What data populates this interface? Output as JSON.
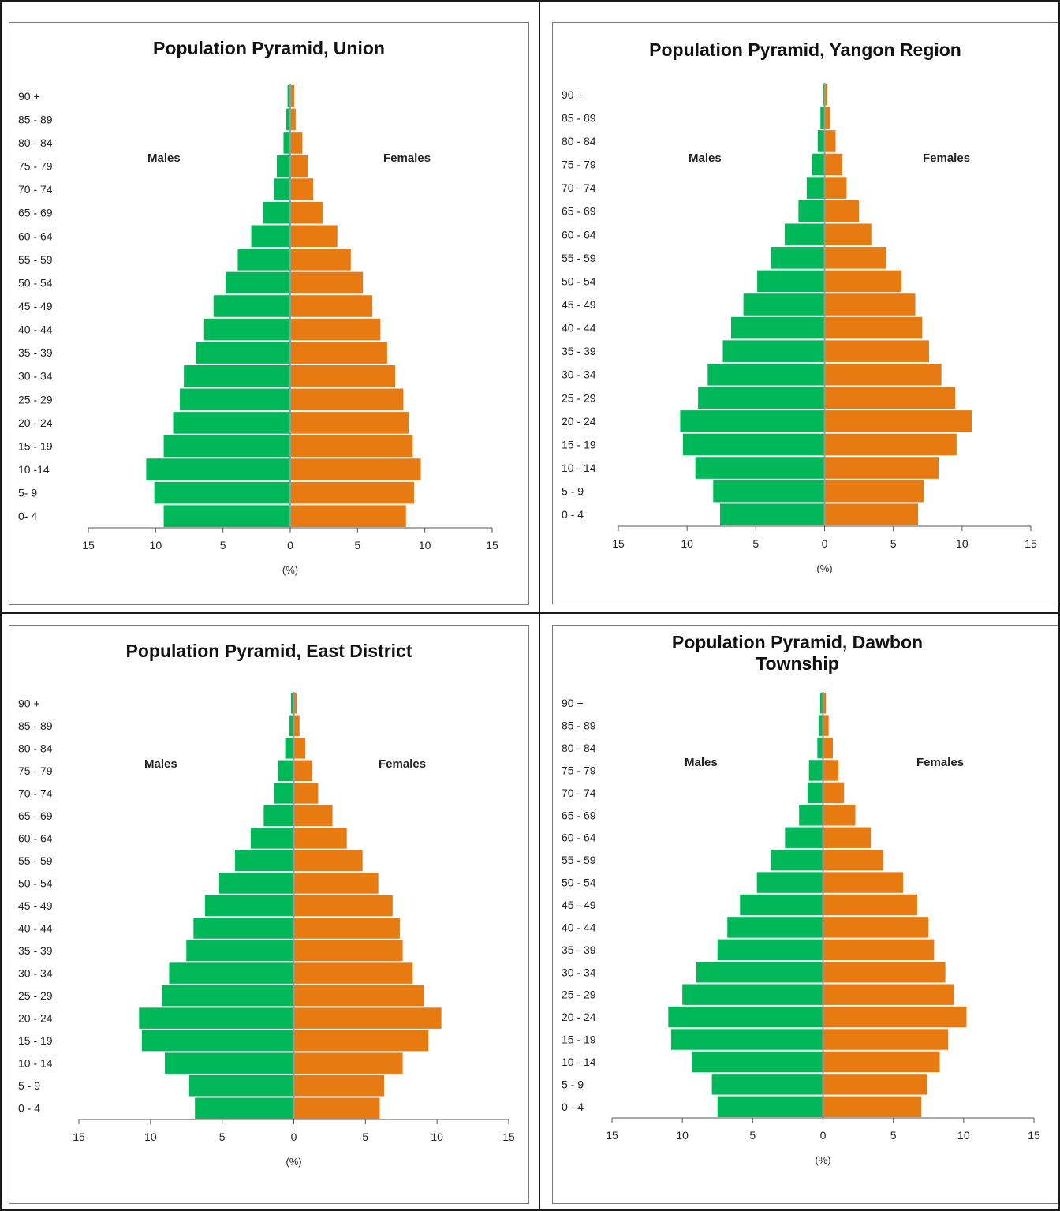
{
  "colors": {
    "males": "#00b857",
    "females": "#e87a12",
    "axis": "#555555",
    "panel_border": "#7a7a7a"
  },
  "chart_data": [
    {
      "type": "bar",
      "orientation": "horizontal-pyramid",
      "title": "Population Pyramid, Union",
      "xlabel": "(%)",
      "xlim": [
        -15,
        15
      ],
      "xticks": [
        "15",
        "10",
        "5",
        "0",
        "5",
        "10",
        "15"
      ],
      "categories": [
        "0- 4",
        "5- 9",
        "10 -14",
        "15 - 19",
        "20 - 24",
        "25 - 29",
        "30 - 34",
        "35 - 39",
        "40 - 44",
        "45 - 49",
        "50 - 54",
        "55 - 59",
        "60 - 64",
        "65 - 69",
        "70 - 74",
        "75 - 79",
        "80 - 84",
        "85 - 89",
        "90 +"
      ],
      "series": [
        {
          "name": "Males",
          "values": [
            9.4,
            10.1,
            10.7,
            9.4,
            8.7,
            8.2,
            7.9,
            7.0,
            6.4,
            5.7,
            4.8,
            3.9,
            2.9,
            2.0,
            1.2,
            1.0,
            0.5,
            0.3,
            0.2
          ]
        },
        {
          "name": "Females",
          "values": [
            8.6,
            9.2,
            9.7,
            9.1,
            8.8,
            8.4,
            7.8,
            7.2,
            6.7,
            6.1,
            5.4,
            4.5,
            3.5,
            2.4,
            1.7,
            1.3,
            0.9,
            0.4,
            0.3
          ]
        }
      ],
      "legend": "inside, Males left / Females right"
    },
    {
      "type": "bar",
      "orientation": "horizontal-pyramid",
      "title": "Population Pyramid, Yangon Region",
      "xlabel": "(%)",
      "xlim": [
        -15,
        15
      ],
      "xticks": [
        "15",
        "10",
        "5",
        "0",
        "5",
        "10",
        "15"
      ],
      "categories": [
        "0 - 4",
        "5 - 9",
        "10 - 14",
        "15 - 19",
        "20 - 24",
        "25 - 29",
        "30 - 34",
        "35 - 39",
        "40 - 44",
        "45 - 49",
        "50 - 54",
        "55 - 59",
        "60 - 64",
        "65 - 69",
        "70 - 74",
        "75 - 79",
        "80 - 84",
        "85 - 89",
        "90 +"
      ],
      "series": [
        {
          "name": "Males",
          "values": [
            7.6,
            8.1,
            9.4,
            10.3,
            10.5,
            9.2,
            8.5,
            7.4,
            6.8,
            5.9,
            4.9,
            3.9,
            2.9,
            1.9,
            1.3,
            0.9,
            0.5,
            0.3,
            0.1
          ]
        },
        {
          "name": "Females",
          "values": [
            6.8,
            7.2,
            8.3,
            9.6,
            10.7,
            9.5,
            8.5,
            7.6,
            7.1,
            6.6,
            5.6,
            4.5,
            3.4,
            2.5,
            1.6,
            1.3,
            0.8,
            0.4,
            0.2
          ]
        }
      ],
      "legend": "inside, Males left / Females right"
    },
    {
      "type": "bar",
      "orientation": "horizontal-pyramid",
      "title": "Population Pyramid, East District",
      "xlabel": "(%)",
      "xlim": [
        -15,
        15
      ],
      "xticks": [
        "15",
        "10",
        "5",
        "0",
        "5",
        "10",
        "15"
      ],
      "categories": [
        "0 - 4",
        "5 - 9",
        "10 - 14",
        "15 - 19",
        "20 - 24",
        "25 - 29",
        "30 - 34",
        "35 - 39",
        "40 - 44",
        "45 - 49",
        "50 - 54",
        "55 - 59",
        "60 - 64",
        "65 - 69",
        "70 - 74",
        "75 - 79",
        "80 - 84",
        "85 - 89",
        "90 +"
      ],
      "series": [
        {
          "name": "Males",
          "values": [
            6.9,
            7.3,
            9.0,
            10.6,
            10.8,
            9.2,
            8.7,
            7.5,
            7.0,
            6.2,
            5.2,
            4.1,
            3.0,
            2.1,
            1.4,
            1.1,
            0.6,
            0.3,
            0.2
          ]
        },
        {
          "name": "Females",
          "values": [
            6.0,
            6.3,
            7.6,
            9.4,
            10.3,
            9.1,
            8.3,
            7.6,
            7.4,
            6.9,
            5.9,
            4.8,
            3.7,
            2.7,
            1.7,
            1.3,
            0.8,
            0.4,
            0.2
          ]
        }
      ],
      "legend": "inside, Males left / Females right"
    },
    {
      "type": "bar",
      "orientation": "horizontal-pyramid",
      "title": "Population Pyramid, Dawbon Township",
      "xlabel": "(%)",
      "xlim": [
        -15,
        15
      ],
      "xticks": [
        "15",
        "10",
        "5",
        "0",
        "5",
        "10",
        "15"
      ],
      "categories": [
        "0 - 4",
        "5 - 9",
        "10 - 14",
        "15 - 19",
        "20 - 24",
        "25 - 29",
        "30 - 34",
        "35 - 39",
        "40 - 44",
        "45 - 49",
        "50 - 54",
        "55 - 59",
        "60 - 64",
        "65 - 69",
        "70 - 74",
        "75 - 79",
        "80 - 84",
        "85 - 89",
        "90 +"
      ],
      "series": [
        {
          "name": "Males",
          "values": [
            7.5,
            7.9,
            9.3,
            10.8,
            11.0,
            10.0,
            9.0,
            7.5,
            6.8,
            5.9,
            4.7,
            3.7,
            2.7,
            1.7,
            1.1,
            1.0,
            0.4,
            0.3,
            0.2
          ]
        },
        {
          "name": "Females",
          "values": [
            7.0,
            7.4,
            8.3,
            8.9,
            10.2,
            9.3,
            8.7,
            7.9,
            7.5,
            6.7,
            5.7,
            4.3,
            3.4,
            2.3,
            1.5,
            1.1,
            0.7,
            0.4,
            0.2
          ]
        }
      ],
      "legend": "inside, Males left / Females right"
    }
  ]
}
